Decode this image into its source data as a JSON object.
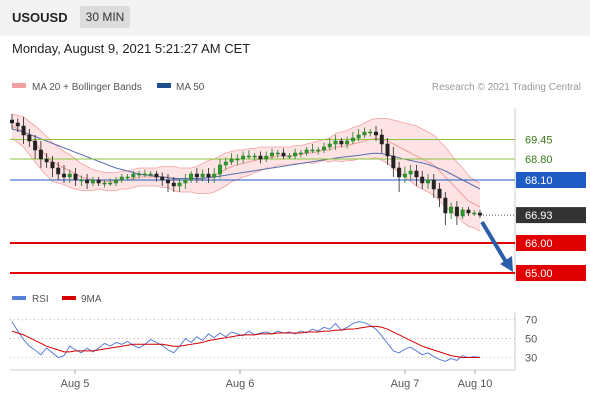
{
  "header": {
    "symbol": "USOUSD",
    "timeframe": "30 MIN"
  },
  "datetime": "Monday, August 9, 2021 5:21:27 AM CET",
  "legend": {
    "bollinger": "MA 20 + Bollinger Bands",
    "ma50": "MA 50",
    "credit": "Research © 2021 Trading Central",
    "rsi": "RSI",
    "rsi_ma": "9MA"
  },
  "colors": {
    "candle_up": "#1e7a1e",
    "candle_down": "#222222",
    "bollinger": "#f4a0a0",
    "bollinger_fill": "#fde3e3",
    "ma50": "#5b6fae",
    "level_green": "#8cc63f",
    "level_blue": "#1f5bc4",
    "level_red": "#e00000",
    "label_dark": "#333333",
    "arrow": "#2a5da8",
    "rsi": "#5a7fd6",
    "rsi_ma": "#d40000"
  },
  "chart_data": [
    {
      "type": "candlestick",
      "x_labels": [
        "Aug 5",
        "Aug 6",
        "Aug 7",
        "Aug 10"
      ],
      "ylim": [
        64.7,
        70.5
      ],
      "y_axis_side": "right",
      "legend_position": "top-left",
      "levels": [
        {
          "value": 69.45,
          "label": "69.45",
          "kind": "green"
        },
        {
          "value": 68.8,
          "label": "68.80",
          "kind": "green"
        },
        {
          "value": 68.1,
          "label": "68.10",
          "kind": "blue"
        },
        {
          "value": 66.93,
          "label": "66.93",
          "kind": "dark"
        },
        {
          "value": 66.0,
          "label": "66.00",
          "kind": "red"
        },
        {
          "value": 65.0,
          "label": "65.00",
          "kind": "red"
        }
      ],
      "close": [
        70.0,
        69.9,
        69.6,
        69.4,
        69.1,
        68.8,
        68.7,
        68.5,
        68.3,
        68.2,
        68.3,
        68.1,
        68.1,
        68.0,
        68.1,
        68.0,
        68.0,
        68.0,
        68.1,
        68.2,
        68.2,
        68.3,
        68.3,
        68.3,
        68.3,
        68.2,
        68.1,
        68.0,
        67.9,
        68.0,
        68.1,
        68.3,
        68.2,
        68.3,
        68.2,
        68.3,
        68.6,
        68.7,
        68.8,
        68.8,
        68.9,
        68.9,
        68.9,
        68.8,
        68.9,
        69.0,
        69.0,
        68.9,
        68.9,
        69.0,
        69.0,
        69.1,
        69.1,
        69.1,
        69.2,
        69.3,
        69.4,
        69.3,
        69.4,
        69.5,
        69.6,
        69.7,
        69.7,
        69.6,
        69.3,
        68.9,
        68.5,
        68.2,
        68.3,
        68.4,
        68.2,
        68.0,
        68.1,
        67.8,
        67.5,
        67.0,
        67.2,
        66.9,
        67.1,
        67.0,
        67.0,
        66.93
      ],
      "high_offset": [
        0.2,
        0.15,
        0.3,
        0.2,
        0.2,
        0.3,
        0.2,
        0.2,
        0.2,
        0.3,
        0.15,
        0.2,
        0.15,
        0.2,
        0.1,
        0.1,
        0.1,
        0.15,
        0.1,
        0.1,
        0.1,
        0.1,
        0.1,
        0.15,
        0.1,
        0.1,
        0.15,
        0.2,
        0.2,
        0.15,
        0.2,
        0.1,
        0.2,
        0.15,
        0.2,
        0.2,
        0.2,
        0.15,
        0.2,
        0.15,
        0.15,
        0.2,
        0.1,
        0.15,
        0.15,
        0.15,
        0.1,
        0.15,
        0.1,
        0.15,
        0.1,
        0.1,
        0.2,
        0.1,
        0.15,
        0.2,
        0.2,
        0.1,
        0.15,
        0.2,
        0.2,
        0.15,
        0.1,
        0.2,
        0.2,
        0.2,
        0.3,
        0.2,
        0.25,
        0.2,
        0.2,
        0.2,
        0.2,
        0.2,
        0.2,
        0.2,
        0.15,
        0.2,
        0.1,
        0.1,
        0.1,
        0.1
      ],
      "low_offset": [
        0.2,
        0.2,
        0.3,
        0.2,
        0.3,
        0.3,
        0.2,
        0.3,
        0.2,
        0.2,
        0.2,
        0.2,
        0.2,
        0.2,
        0.1,
        0.1,
        0.15,
        0.1,
        0.1,
        0.1,
        0.1,
        0.1,
        0.15,
        0.1,
        0.1,
        0.15,
        0.2,
        0.3,
        0.2,
        0.2,
        0.2,
        0.1,
        0.2,
        0.15,
        0.2,
        0.2,
        0.15,
        0.15,
        0.1,
        0.2,
        0.15,
        0.1,
        0.15,
        0.15,
        0.1,
        0.1,
        0.15,
        0.1,
        0.1,
        0.1,
        0.15,
        0.1,
        0.1,
        0.15,
        0.1,
        0.1,
        0.2,
        0.1,
        0.15,
        0.1,
        0.1,
        0.1,
        0.15,
        0.2,
        0.3,
        0.3,
        0.3,
        0.5,
        0.2,
        0.2,
        0.3,
        0.2,
        0.2,
        0.3,
        0.3,
        0.4,
        0.2,
        0.3,
        0.1,
        0.1,
        0.1,
        0.1
      ],
      "ma20": [
        69.9,
        69.8,
        69.7,
        69.5,
        69.3,
        69.1,
        68.9,
        68.7,
        68.6,
        68.5,
        68.4,
        68.3,
        68.2,
        68.15,
        68.1,
        68.1,
        68.05,
        68.05,
        68.05,
        68.1,
        68.1,
        68.15,
        68.2,
        68.2,
        68.2,
        68.2,
        68.2,
        68.2,
        68.15,
        68.1,
        68.1,
        68.1,
        68.1,
        68.15,
        68.2,
        68.25,
        68.35,
        68.45,
        68.55,
        68.6,
        68.65,
        68.7,
        68.75,
        68.8,
        68.85,
        68.85,
        68.9,
        68.9,
        68.9,
        68.95,
        68.95,
        69.0,
        69.0,
        69.05,
        69.1,
        69.1,
        69.2,
        69.2,
        69.25,
        69.3,
        69.35,
        69.4,
        69.45,
        69.5,
        69.45,
        69.4,
        69.3,
        69.2,
        69.1,
        69.0,
        68.9,
        68.8,
        68.7,
        68.6,
        68.4,
        68.2,
        68.0,
        67.8,
        67.6,
        67.4,
        67.3,
        67.2
      ],
      "bollinger_width": [
        0.4,
        0.45,
        0.5,
        0.55,
        0.6,
        0.65,
        0.65,
        0.65,
        0.6,
        0.55,
        0.55,
        0.5,
        0.45,
        0.4,
        0.35,
        0.3,
        0.3,
        0.3,
        0.3,
        0.3,
        0.3,
        0.3,
        0.3,
        0.3,
        0.3,
        0.3,
        0.35,
        0.35,
        0.4,
        0.4,
        0.4,
        0.4,
        0.45,
        0.5,
        0.55,
        0.55,
        0.55,
        0.55,
        0.5,
        0.5,
        0.45,
        0.45,
        0.4,
        0.4,
        0.35,
        0.35,
        0.3,
        0.3,
        0.3,
        0.3,
        0.3,
        0.3,
        0.35,
        0.35,
        0.35,
        0.4,
        0.45,
        0.5,
        0.5,
        0.55,
        0.55,
        0.6,
        0.65,
        0.65,
        0.7,
        0.75,
        0.8,
        0.85,
        0.9,
        0.95,
        1.0,
        1.0,
        1.0,
        1.0,
        1.0,
        1.0,
        0.95,
        0.9,
        0.9,
        0.85,
        0.8,
        0.8
      ],
      "ma50": [
        69.8,
        69.75,
        69.7,
        69.62,
        69.55,
        69.47,
        69.4,
        69.32,
        69.25,
        69.17,
        69.1,
        69.02,
        68.95,
        68.87,
        68.8,
        68.72,
        68.65,
        68.57,
        68.5,
        68.45,
        68.4,
        68.35,
        68.3,
        68.27,
        68.25,
        68.22,
        68.2,
        68.17,
        68.15,
        68.15,
        68.15,
        68.15,
        68.15,
        68.16,
        68.18,
        68.2,
        68.23,
        68.26,
        68.29,
        68.32,
        68.35,
        68.38,
        68.41,
        68.44,
        68.47,
        68.5,
        68.53,
        68.56,
        68.59,
        68.62,
        68.65,
        68.68,
        68.71,
        68.74,
        68.77,
        68.8,
        68.83,
        68.86,
        68.88,
        68.9,
        68.92,
        68.95,
        68.98,
        68.99,
        68.98,
        68.94,
        68.89,
        68.84,
        68.79,
        68.75,
        68.71,
        68.67,
        68.62,
        68.55,
        68.48,
        68.4,
        68.3,
        68.2,
        68.1,
        68.0,
        67.9,
        67.8
      ]
    },
    {
      "type": "line",
      "title": "RSI",
      "x_labels": [
        "Aug 5",
        "Aug 6",
        "Aug 7",
        "Aug 10"
      ],
      "ylim": [
        20,
        75
      ],
      "y_ticks": [
        70,
        50,
        30
      ],
      "series": [
        {
          "name": "RSI",
          "values": [
            68,
            58,
            49,
            42,
            38,
            33,
            40,
            35,
            30,
            32,
            42,
            38,
            35,
            40,
            36,
            40,
            45,
            42,
            46,
            44,
            47,
            43,
            40,
            44,
            49,
            46,
            43,
            38,
            35,
            42,
            50,
            46,
            52,
            48,
            55,
            51,
            56,
            52,
            57,
            55,
            53,
            58,
            54,
            56,
            57,
            55,
            58,
            56,
            57,
            55,
            58,
            56,
            60,
            58,
            62,
            60,
            66,
            59,
            62,
            66,
            68,
            67,
            64,
            60,
            53,
            45,
            37,
            35,
            39,
            41,
            37,
            33,
            35,
            31,
            28,
            26,
            29,
            27,
            32,
            30,
            31,
            30
          ]
        },
        {
          "name": "9MA",
          "values": [
            58,
            56,
            54,
            51,
            48,
            45,
            42,
            40,
            38,
            36,
            36,
            37,
            37,
            37,
            37,
            38,
            39,
            40,
            41,
            42,
            43,
            44,
            44,
            44,
            44,
            44,
            44,
            43,
            42,
            42,
            43,
            44,
            45,
            46,
            48,
            49,
            50,
            51,
            52,
            53,
            54,
            54,
            54,
            55,
            55,
            55,
            56,
            56,
            56,
            56,
            56,
            57,
            57,
            57,
            58,
            58,
            59,
            59,
            60,
            60,
            61,
            62,
            63,
            63,
            62,
            60,
            57,
            54,
            51,
            48,
            45,
            42,
            40,
            38,
            36,
            34,
            32,
            31,
            30,
            30,
            30,
            30
          ]
        }
      ]
    }
  ]
}
